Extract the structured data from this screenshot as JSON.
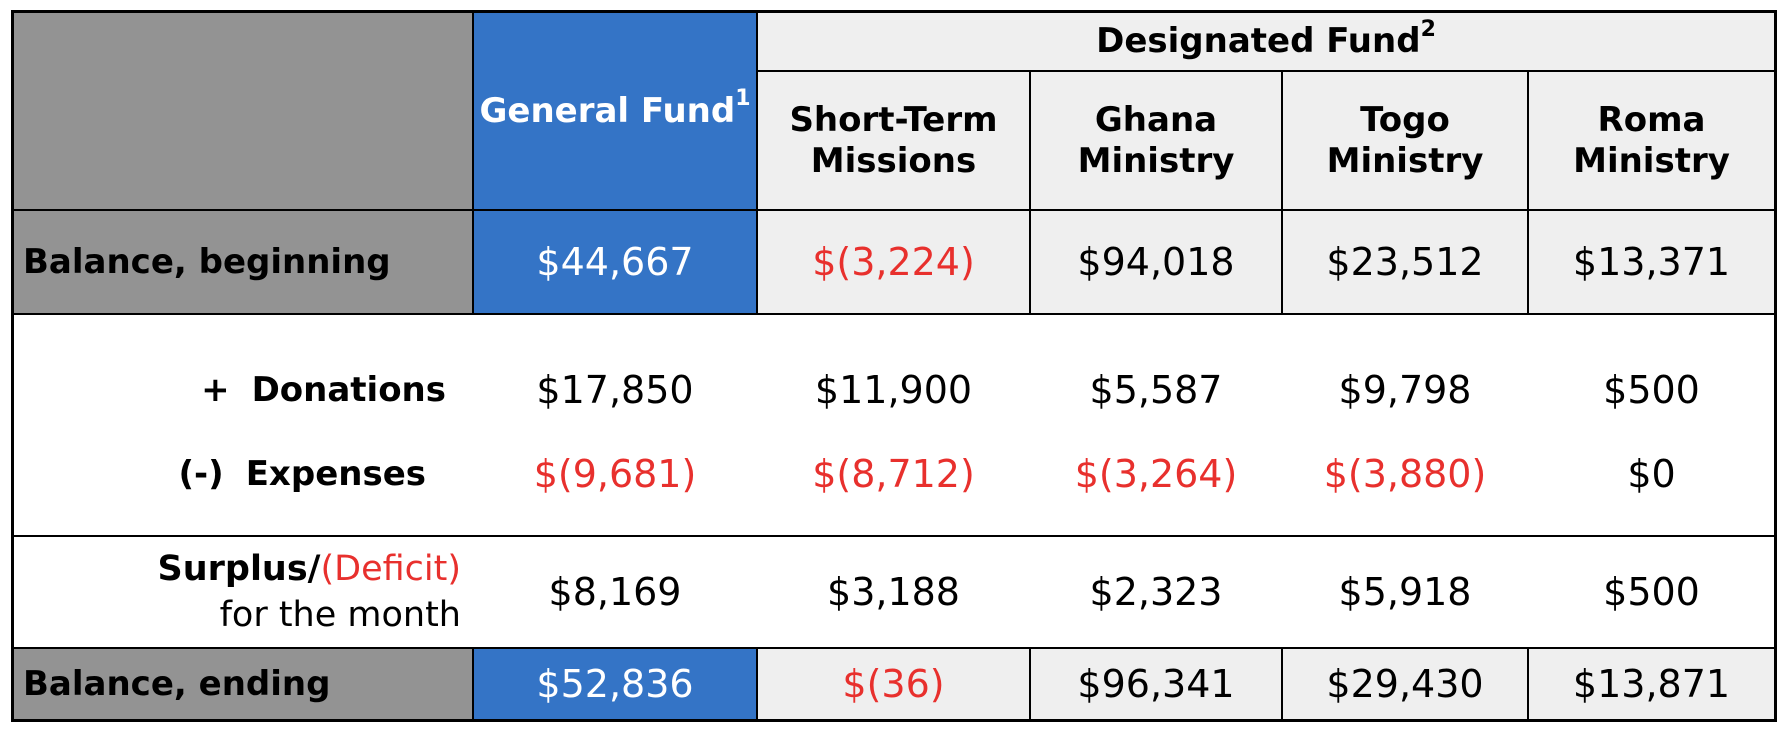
{
  "header": {
    "general_fund": "General Fund",
    "general_fund_note": "1",
    "designated_fund": "Designated Fund",
    "designated_fund_note": "2",
    "columns": [
      "Short-Term Missions",
      "Ghana Ministry",
      "Togo Ministry",
      "Roma Ministry"
    ],
    "columns_lines": [
      [
        "Short-Term",
        "Missions"
      ],
      [
        "Ghana",
        "Ministry"
      ],
      [
        "Togo",
        "Ministry"
      ],
      [
        "Roma",
        "Ministry"
      ]
    ]
  },
  "rows": {
    "balance_beginning": {
      "label": "Balance, beginning",
      "values": [
        "$44,667",
        "$(3,224)",
        "$94,018",
        "$23,512",
        "$13,371"
      ]
    },
    "donations": {
      "sign": "+",
      "label": "Donations",
      "values": [
        "$17,850",
        "$11,900",
        "$5,587",
        "$9,798",
        "$500"
      ]
    },
    "expenses": {
      "sign": "(-)",
      "label": "Expenses",
      "values": [
        "$(9,681)",
        "$(8,712)",
        "$(3,264)",
        "$(3,880)",
        "$0"
      ]
    },
    "surplus": {
      "label_surplus": "Surplus/",
      "label_deficit": "(Deficit)",
      "label_line2": "for the month",
      "values": [
        "$8,169",
        "$3,188",
        "$2,323",
        "$5,918",
        "$500"
      ]
    },
    "balance_ending": {
      "label": "Balance, ending",
      "values": [
        "$52,836",
        "$(36)",
        "$96,341",
        "$29,430",
        "$13,871"
      ]
    }
  },
  "colors": {
    "label_grey": "#939393",
    "general_fund_blue": "#3474c6",
    "designated_light": "#efefef",
    "negative_red": "#e8302d"
  }
}
